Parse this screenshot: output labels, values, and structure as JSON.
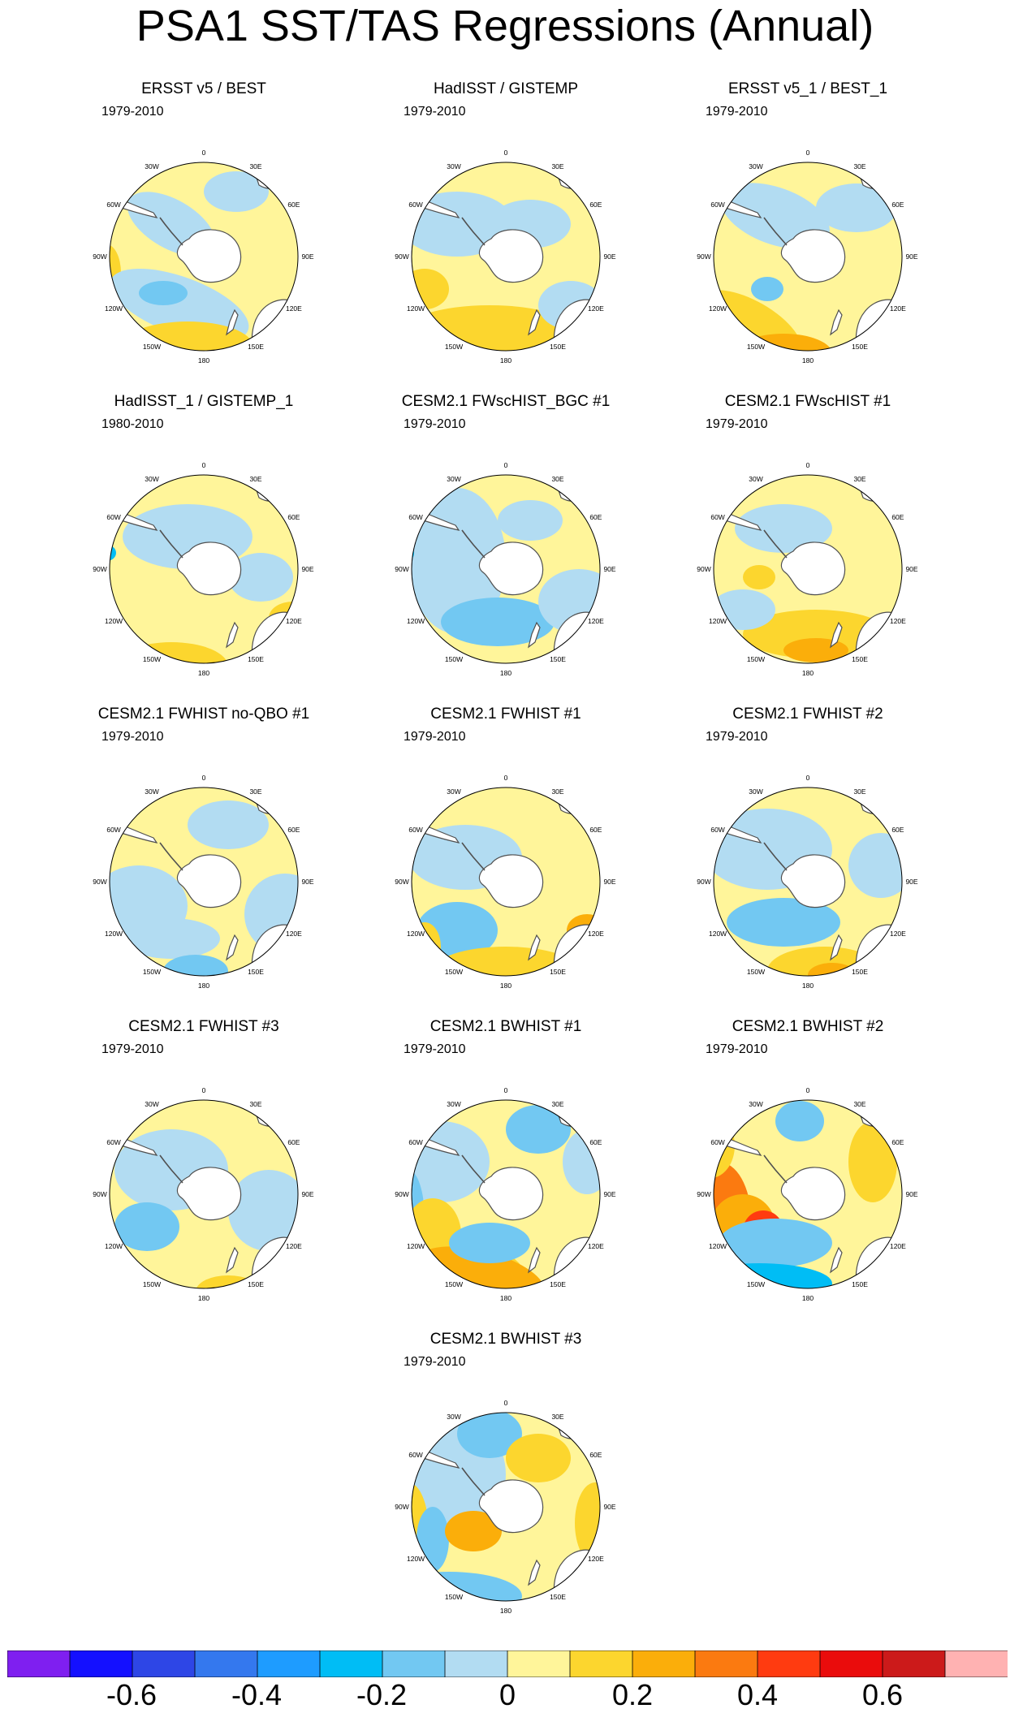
{
  "title": "PSA1 SST/TAS Regressions (Annual)",
  "colors": {
    "contour_fill": [
      "#7f1ff0",
      "#1410ff",
      "#2e46e6",
      "#3478ee",
      "#1e9cff",
      "#00bdf5",
      "#72c8f2",
      "#b2dcf2",
      "#fff59a",
      "#fcd62e",
      "#fbae0a",
      "#fb7a10",
      "#ff3b10",
      "#ea0c0c",
      "#cc1a1a",
      "#ffb2b2"
    ],
    "land_outline": "#505050",
    "land_fill": "#ffffff"
  },
  "colorbar": {
    "tick_labels": [
      "-0.6",
      "-0.4",
      "-0.2",
      "0",
      "0.2",
      "0.4",
      "0.6"
    ]
  },
  "longitude_labels": [
    "0",
    "30E",
    "60E",
    "90E",
    "120E",
    "150E",
    "180",
    "150W",
    "120W",
    "90W",
    "60W",
    "30W"
  ],
  "panels": [
    {
      "title": "ERSST v5 / BEST",
      "years": "1979-2010",
      "pattern": "obs_a"
    },
    {
      "title": "HadISST / GISTEMP",
      "years": "1979-2010",
      "pattern": "obs_b"
    },
    {
      "title": "ERSST v5_1 / BEST_1",
      "years": "1979-2010",
      "pattern": "obs_c"
    },
    {
      "title": "HadISST_1 / GISTEMP_1",
      "years": "1980-2010",
      "pattern": "obs_d"
    },
    {
      "title": "CESM2.1 FWscHIST_BGC #1",
      "years": "1979-2010",
      "pattern": "model_a"
    },
    {
      "title": "CESM2.1 FWscHIST #1",
      "years": "1979-2010",
      "pattern": "model_b"
    },
    {
      "title": "CESM2.1 FWHIST no-QBO #1",
      "years": "1979-2010",
      "pattern": "model_c"
    },
    {
      "title": "CESM2.1 FWHIST #1",
      "years": "1979-2010",
      "pattern": "model_d"
    },
    {
      "title": "CESM2.1 FWHIST #2",
      "years": "1979-2010",
      "pattern": "model_e"
    },
    {
      "title": "CESM2.1 FWHIST #3",
      "years": "1979-2010",
      "pattern": "model_f"
    },
    {
      "title": "CESM2.1 BWHIST #1",
      "years": "1979-2010",
      "pattern": "strong_a"
    },
    {
      "title": "CESM2.1 BWHIST #2",
      "years": "1979-2010",
      "pattern": "strong_b"
    },
    {
      "title": "CESM2.1 BWHIST #3",
      "years": "1979-2010",
      "pattern": "strong_c"
    }
  ]
}
